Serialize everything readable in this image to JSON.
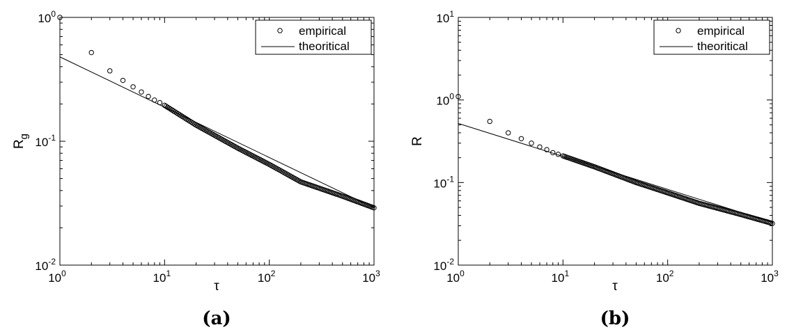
{
  "chart_data": [
    {
      "panel_label": "(a)",
      "type": "scatter",
      "xscale": "log",
      "yscale": "log",
      "xlim": [
        1,
        1000
      ],
      "ylim": [
        0.01,
        1
      ],
      "xlabel": "τ",
      "ylabel": {
        "base": "R",
        "subscript": "g"
      },
      "xticks": [
        {
          "value": 1,
          "base": "10",
          "exp": "0"
        },
        {
          "value": 10,
          "base": "10",
          "exp": "1"
        },
        {
          "value": 100,
          "base": "10",
          "exp": "2"
        },
        {
          "value": 1000,
          "base": "10",
          "exp": "3"
        }
      ],
      "yticks": [
        {
          "value": 0.01,
          "base": "10",
          "exp": "-2"
        },
        {
          "value": 0.1,
          "base": "10",
          "exp": "-1"
        },
        {
          "value": 1,
          "base": "10",
          "exp": "0"
        }
      ],
      "legend": {
        "position": "top-right",
        "entries": [
          "empirical",
          "theoritical"
        ]
      },
      "series": [
        {
          "name": "empirical",
          "marker": "open-circle",
          "x_range": [
            1,
            1000
          ],
          "n_points": 150,
          "points": [
            [
              1,
              1.0
            ],
            [
              2,
              0.52
            ],
            [
              3,
              0.37
            ],
            [
              4,
              0.31
            ],
            [
              5,
              0.275
            ],
            [
              6,
              0.25
            ],
            [
              7,
              0.23
            ],
            [
              8,
              0.215
            ],
            [
              9,
              0.205
            ],
            [
              10,
              0.195
            ],
            [
              20,
              0.135
            ],
            [
              50,
              0.088
            ],
            [
              100,
              0.065
            ],
            [
              200,
              0.047
            ],
            [
              500,
              0.036
            ],
            [
              1000,
              0.029
            ]
          ]
        },
        {
          "name": "theoritical",
          "line": "solid",
          "points": [
            [
              1,
              0.48
            ],
            [
              1000,
              0.029
            ]
          ]
        }
      ]
    },
    {
      "panel_label": "(b)",
      "type": "scatter",
      "xscale": "log",
      "yscale": "log",
      "xlim": [
        1,
        1000
      ],
      "ylim": [
        0.01,
        10
      ],
      "xlabel": "τ",
      "ylabel": {
        "base": "R",
        "subscript": ""
      },
      "xticks": [
        {
          "value": 1,
          "base": "10",
          "exp": "0"
        },
        {
          "value": 10,
          "base": "10",
          "exp": "1"
        },
        {
          "value": 100,
          "base": "10",
          "exp": "2"
        },
        {
          "value": 1000,
          "base": "10",
          "exp": "3"
        }
      ],
      "yticks": [
        {
          "value": 0.01,
          "base": "10",
          "exp": "-2"
        },
        {
          "value": 0.1,
          "base": "10",
          "exp": "-1"
        },
        {
          "value": 1,
          "base": "10",
          "exp": "0"
        },
        {
          "value": 10,
          "base": "10",
          "exp": "1"
        }
      ],
      "legend": {
        "position": "top-right",
        "entries": [
          "empirical",
          "theoritical"
        ]
      },
      "series": [
        {
          "name": "empirical",
          "marker": "open-circle",
          "x_range": [
            1,
            1000
          ],
          "n_points": 150,
          "points": [
            [
              1,
              1.1
            ],
            [
              2,
              0.55
            ],
            [
              3,
              0.4
            ],
            [
              4,
              0.34
            ],
            [
              5,
              0.3
            ],
            [
              6,
              0.27
            ],
            [
              7,
              0.25
            ],
            [
              8,
              0.23
            ],
            [
              9,
              0.22
            ],
            [
              10,
              0.21
            ],
            [
              20,
              0.155
            ],
            [
              50,
              0.1
            ],
            [
              100,
              0.075
            ],
            [
              200,
              0.056
            ],
            [
              500,
              0.041
            ],
            [
              1000,
              0.032
            ]
          ]
        },
        {
          "name": "theoritical",
          "line": "solid",
          "points": [
            [
              1,
              0.52
            ],
            [
              1000,
              0.033
            ]
          ]
        }
      ]
    }
  ]
}
